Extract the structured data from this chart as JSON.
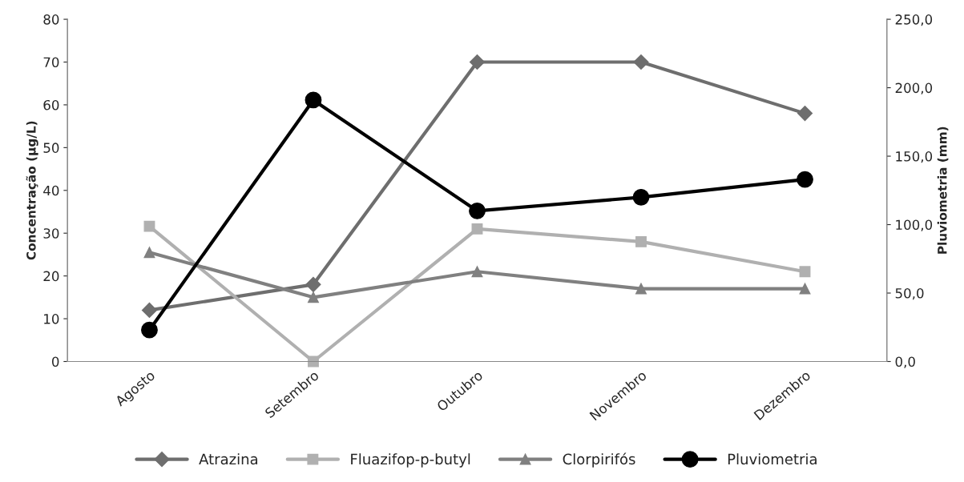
{
  "chart_data": {
    "type": "line",
    "ylabel": "Concentração (µg/L)",
    "y2label": "Pluviometria (mm)",
    "categories": [
      "Agosto",
      "Setembro",
      "Outubro",
      "Novembro",
      "Dezembro"
    ],
    "series": [
      {
        "name": "Atrazina",
        "color": "#6e6e6e",
        "marker": "diamond",
        "values": [
          12,
          18,
          70,
          70,
          58
        ]
      },
      {
        "name": "Fluazifop-p-butyl",
        "color": "#b0b0b0",
        "marker": "square",
        "values": [
          31.6,
          0,
          31,
          28,
          21
        ]
      },
      {
        "name": "Clorpirifós",
        "color": "#808080",
        "marker": "triangle",
        "values": [
          25.5,
          15,
          21,
          17,
          17
        ]
      },
      {
        "name": "Pluviometria",
        "color": "#000000",
        "marker": "circle",
        "axis": "y2",
        "values": [
          23,
          191,
          110,
          120,
          133
        ]
      }
    ],
    "ylim": [
      0,
      80
    ],
    "yticks": [
      0,
      10,
      20,
      30,
      40,
      50,
      60,
      70,
      80
    ],
    "y2lim": [
      0,
      250
    ],
    "y2ticks": [
      {
        "value": 0,
        "label": "0,0"
      },
      {
        "value": 50,
        "label": "50,0"
      },
      {
        "value": 100,
        "label": "100,0"
      },
      {
        "value": 150,
        "label": "150,0"
      },
      {
        "value": 200,
        "label": "200,0"
      },
      {
        "value": 250,
        "label": "250,0"
      }
    ],
    "grid": false,
    "legend": "bottom",
    "line_style": "solid"
  }
}
